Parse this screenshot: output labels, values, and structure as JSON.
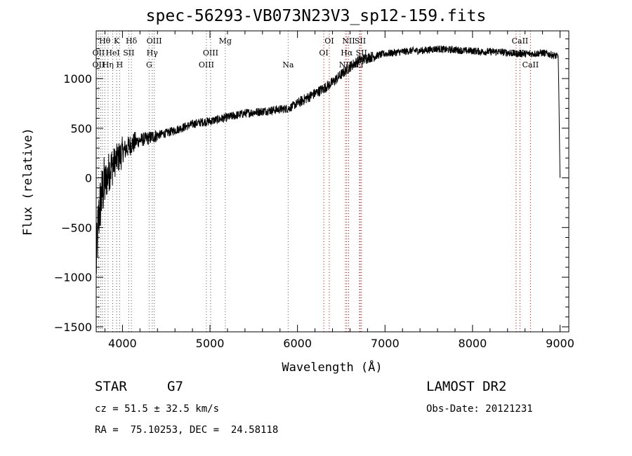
{
  "chart_data": {
    "type": "line",
    "title": "spec-56293-VB073N23V3_sp12-159.fits",
    "xlabel": "Wavelength (Å)",
    "ylabel": "Flux (relative)",
    "xlim": [
      3700,
      9100
    ],
    "ylim": [
      -1550,
      1480
    ],
    "x_ticks": [
      4000,
      5000,
      6000,
      7000,
      8000,
      9000
    ],
    "y_ticks": [
      -1500,
      -1000,
      -500,
      0,
      500,
      1000
    ],
    "grid": false,
    "series": [
      {
        "color": "#000000",
        "x": [
          3700,
          3720,
          3740,
          3760,
          3780,
          3800,
          3820,
          3840,
          3860,
          3880,
          3900,
          3920,
          3940,
          3960,
          3980,
          4000,
          4050,
          4100,
          4150,
          4200,
          4300,
          4400,
          4500,
          4600,
          4700,
          4800,
          4900,
          5000,
          5100,
          5200,
          5300,
          5400,
          5500,
          5600,
          5700,
          5800,
          5900,
          6000,
          6100,
          6200,
          6300,
          6400,
          6500,
          6600,
          6700,
          6800,
          6900,
          7000,
          7100,
          7200,
          7300,
          7400,
          7500,
          7600,
          7700,
          7800,
          7900,
          8000,
          8100,
          8200,
          8300,
          8400,
          8500,
          8600,
          8700,
          8800,
          8900,
          8980,
          9000
        ],
        "y": [
          -900,
          -500,
          -300,
          -200,
          -100,
          -50,
          0,
          50,
          100,
          120,
          150,
          170,
          190,
          210,
          230,
          260,
          300,
          340,
          360,
          380,
          400,
          430,
          450,
          480,
          510,
          540,
          560,
          570,
          590,
          610,
          630,
          650,
          660,
          670,
          680,
          690,
          700,
          750,
          800,
          850,
          900,
          960,
          1040,
          1120,
          1180,
          1210,
          1230,
          1250,
          1260,
          1270,
          1280,
          1280,
          1290,
          1300,
          1290,
          1290,
          1280,
          1280,
          1270,
          1270,
          1270,
          1260,
          1250,
          1250,
          1250,
          1260,
          1240,
          1220,
          0
        ]
      }
    ],
    "lines": {
      "labels": [
        {
          "text": "Hθ",
          "x": 3798,
          "row": 1
        },
        {
          "text": "K",
          "x": 3934,
          "row": 1
        },
        {
          "text": "Hδ",
          "x": 4102,
          "row": 1
        },
        {
          "text": "OIII",
          "x": 4363,
          "row": 1
        },
        {
          "text": "Mg",
          "x": 5175,
          "row": 1
        },
        {
          "text": "OI",
          "x": 6363,
          "row": 1
        },
        {
          "text": "NII",
          "x": 6584,
          "row": 1
        },
        {
          "text": "SII",
          "x": 6717,
          "row": 1
        },
        {
          "text": "CaII",
          "x": 8542,
          "row": 1
        },
        {
          "text": "OII",
          "x": 3727,
          "row": 2
        },
        {
          "text": "HeI",
          "x": 3889,
          "row": 2
        },
        {
          "text": "SII",
          "x": 4072,
          "row": 2
        },
        {
          "text": "Hγ",
          "x": 4340,
          "row": 2
        },
        {
          "text": "OIII",
          "x": 5007,
          "row": 2
        },
        {
          "text": "OI",
          "x": 6300,
          "row": 2
        },
        {
          "text": "Hα",
          "x": 6563,
          "row": 2
        },
        {
          "text": "SII",
          "x": 6731,
          "row": 2
        },
        {
          "text": "CaII",
          "x": 8498,
          "row": 2
        },
        {
          "text": "OII",
          "x": 3727,
          "row": 3
        },
        {
          "text": "Hη",
          "x": 3835,
          "row": 3
        },
        {
          "text": "H",
          "x": 3968,
          "row": 3
        },
        {
          "text": "G",
          "x": 4305,
          "row": 3
        },
        {
          "text": "OIII",
          "x": 4959,
          "row": 3
        },
        {
          "text": "Na",
          "x": 5893,
          "row": 3
        },
        {
          "text": "NII",
          "x": 6548,
          "row": 3
        },
        {
          "text": "Li",
          "x": 6708,
          "row": 3
        },
        {
          "text": "CaII",
          "x": 8662,
          "row": 3
        }
      ],
      "red_dotted": [
        6300,
        6363,
        6548,
        6563,
        6584,
        6708,
        6717,
        6731,
        8498,
        8542,
        8662
      ],
      "gray_dotted": [
        3727,
        3750,
        3771,
        3798,
        3835,
        3889,
        3934,
        3968,
        4072,
        4102,
        4305,
        4340,
        4363,
        4959,
        5007,
        5175,
        5893
      ]
    }
  },
  "info": {
    "class_label": "STAR",
    "subclass": "G7",
    "survey": "LAMOST DR2",
    "cz": "cz = 51.5 ± 32.5 km/s",
    "obs_date": "Obs-Date: 20121231",
    "coords": "RA =  75.10253, DEC =  24.58118"
  }
}
